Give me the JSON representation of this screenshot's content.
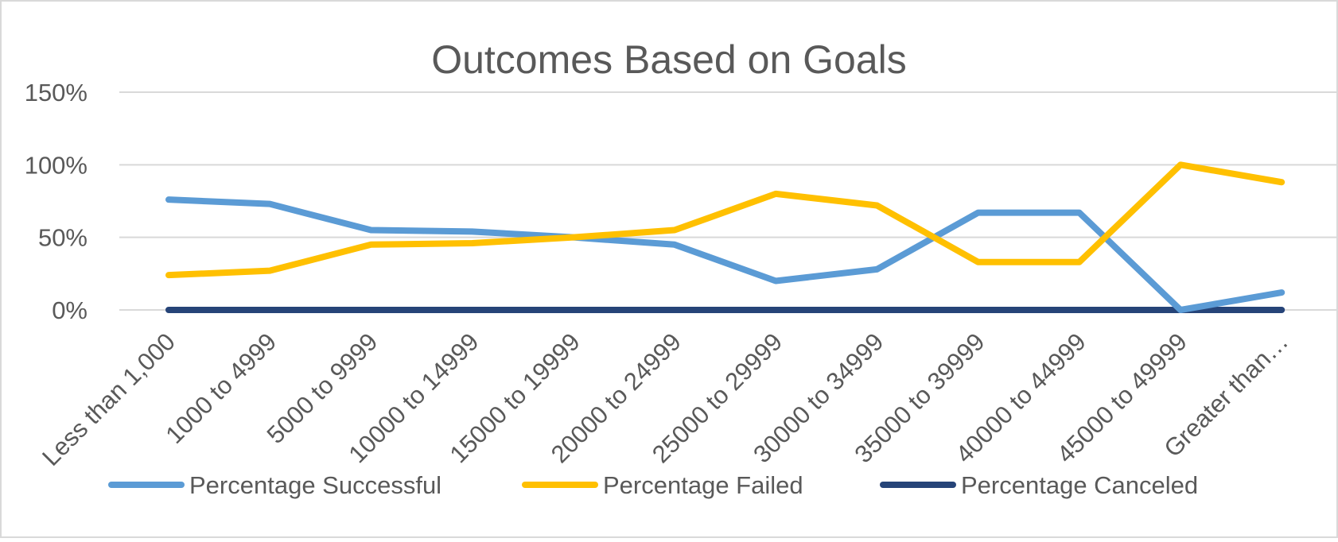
{
  "chart_data": {
    "type": "line",
    "title": "Outcomes Based on Goals",
    "xlabel": "",
    "ylabel": "",
    "ylim": [
      0,
      1.5
    ],
    "yticks": [
      {
        "value": 0,
        "label": "0%"
      },
      {
        "value": 0.5,
        "label": "50%"
      },
      {
        "value": 1.0,
        "label": "100%"
      },
      {
        "value": 1.5,
        "label": "150%"
      }
    ],
    "categories": [
      "Less than 1,000",
      "1000 to 4999",
      "5000 to 9999",
      "10000 to 14999",
      "15000 to 19999",
      "20000 to 24999",
      "25000 to 29999",
      "30000 to 34999",
      "35000 to 39999",
      "40000 to 44999",
      "45000 to 49999",
      "Greater than…"
    ],
    "series": [
      {
        "name": "Percentage Successful",
        "color": "#5B9BD5",
        "values": [
          0.76,
          0.73,
          0.55,
          0.54,
          0.5,
          0.45,
          0.2,
          0.28,
          0.67,
          0.67,
          0.0,
          0.12
        ]
      },
      {
        "name": "Percentage Failed",
        "color": "#FFC000",
        "values": [
          0.24,
          0.27,
          0.45,
          0.46,
          0.5,
          0.55,
          0.8,
          0.72,
          0.33,
          0.33,
          1.0,
          0.88
        ]
      },
      {
        "name": "Percentage Canceled",
        "color": "#264478",
        "values": [
          0,
          0,
          0,
          0,
          0,
          0,
          0,
          0,
          0,
          0,
          0,
          0
        ]
      }
    ],
    "grid": true,
    "legend": "bottom"
  }
}
